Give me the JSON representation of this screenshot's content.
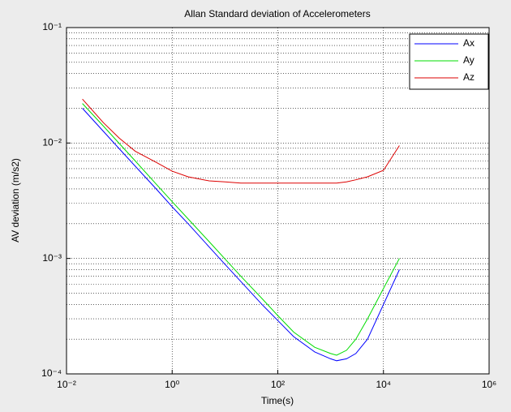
{
  "chart_data": {
    "type": "line",
    "title": "Allan Standard deviation of Accelerometers",
    "x_label": "Time(s)",
    "y_label": "AV deviation (m/s2)",
    "log_x": true,
    "log_y": true,
    "grid": true,
    "legend_position": "top-right",
    "x": [
      0.02,
      0.05,
      0.1,
      0.2,
      0.5,
      1,
      2,
      5,
      10,
      20,
      50,
      100,
      200,
      500,
      1000,
      1300,
      2000,
      3000,
      5000,
      10000,
      20000
    ],
    "series": [
      {
        "name": "Ax",
        "color": "#0000ff",
        "values": [
          0.02,
          0.0126,
          0.0089,
          0.0063,
          0.004,
          0.0028,
          0.002,
          0.00126,
          0.00089,
          0.00063,
          0.0004,
          0.00029,
          0.00021,
          0.000155,
          0.000135,
          0.00013,
          0.000135,
          0.00015,
          0.0002,
          0.0004,
          0.0008
        ]
      },
      {
        "name": "Ay",
        "color": "#00dd00",
        "values": [
          0.022,
          0.014,
          0.0099,
          0.007,
          0.0044,
          0.0031,
          0.0022,
          0.0014,
          0.00099,
          0.0007,
          0.00045,
          0.00032,
          0.00023,
          0.00017,
          0.00015,
          0.000145,
          0.00016,
          0.0002,
          0.0003,
          0.00055,
          0.001
        ]
      },
      {
        "name": "Az",
        "color": "#dd0000",
        "values": [
          0.024,
          0.015,
          0.011,
          0.0085,
          0.0068,
          0.0057,
          0.0051,
          0.0047,
          0.0046,
          0.0045,
          0.0045,
          0.0045,
          0.0045,
          0.0045,
          0.0045,
          0.0045,
          0.0046,
          0.0048,
          0.0051,
          0.0058,
          0.0095
        ]
      }
    ],
    "xlim": [
      0.01,
      1000000
    ],
    "xticks": [
      {
        "value": 0.01,
        "label": "10⁻²"
      },
      {
        "value": 1,
        "label": "10⁰"
      },
      {
        "value": 100,
        "label": "10²"
      },
      {
        "value": 10000,
        "label": "10⁴"
      },
      {
        "value": 1000000,
        "label": "10⁶"
      }
    ],
    "ylim": [
      0.0001,
      0.1
    ],
    "yticks": [
      {
        "value": 0.0001,
        "label": "10⁻⁴"
      },
      {
        "value": 0.001,
        "label": "10⁻³"
      },
      {
        "value": 0.01,
        "label": "10⁻²"
      },
      {
        "value": 0.1,
        "label": "10⁻¹"
      }
    ]
  }
}
